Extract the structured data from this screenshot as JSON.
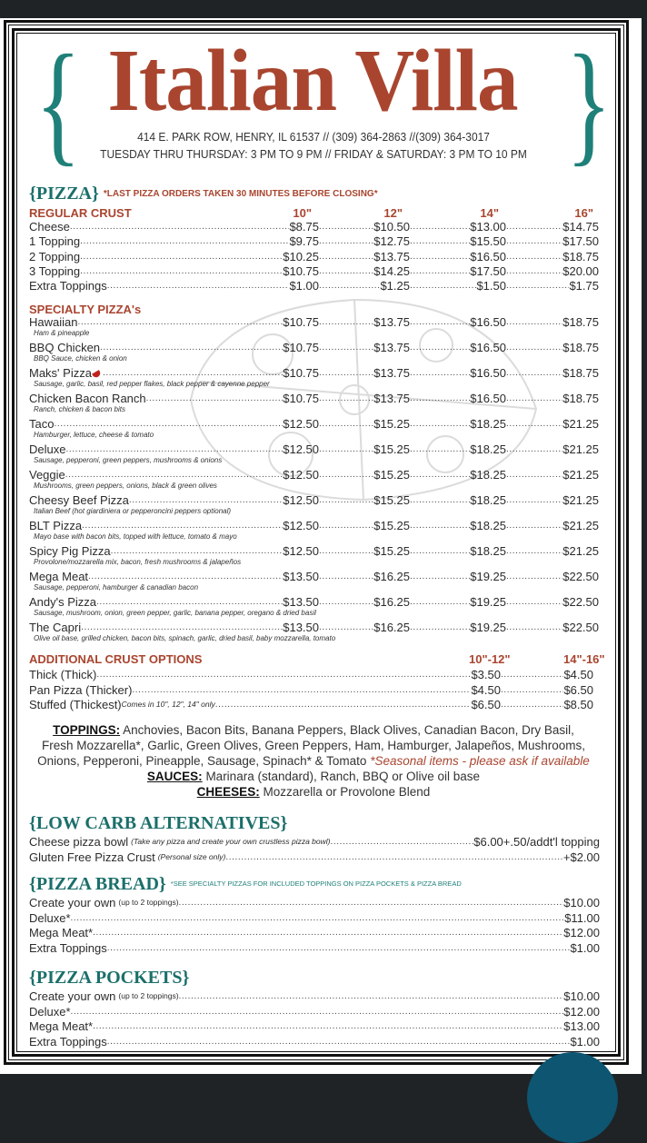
{
  "header": {
    "title": "Italian Villa",
    "brace_open": "{",
    "brace_close": "}",
    "address": "414 E. PARK ROW, HENRY, IL 61537 // (309) 364-2863 //(309) 364-3017",
    "hours": "TUESDAY THRU THURSDAY: 3 PM TO 9 PM // FRIDAY & SATURDAY: 3 PM TO 10 PM"
  },
  "colors": {
    "title_red": "#a9452f",
    "teal": "#1f8079",
    "button": "#0d5570"
  },
  "pizza": {
    "title": "{PIZZA}",
    "note": "*LAST PIZZA ORDERS TAKEN 30 MINUTES BEFORE CLOSING*",
    "regular_crust": "REGULAR CRUST",
    "sizes": [
      "10\"",
      "12\"",
      "14\"",
      "16\""
    ],
    "rows": [
      {
        "name": "Cheese",
        "prices": [
          "$8.75",
          "$10.50",
          "$13.00",
          "$14.75"
        ]
      },
      {
        "name": "1 Topping",
        "prices": [
          "$9.75",
          "$12.75",
          "$15.50",
          "$17.50"
        ]
      },
      {
        "name": "2 Topping",
        "prices": [
          "$10.25",
          "$13.75",
          "$16.50",
          "$18.75"
        ]
      },
      {
        "name": "3 Topping",
        "prices": [
          "$10.75",
          "$14.25",
          "$17.50",
          "$20.00"
        ]
      },
      {
        "name": "Extra Toppings",
        "prices": [
          "$1.00",
          "$1.25",
          "$1.50",
          "$1.75"
        ]
      }
    ]
  },
  "specialty": {
    "title": "SPECIALTY PIZZA's",
    "items": [
      {
        "name": "Hawaiian",
        "desc": "Ham & pineapple",
        "prices": [
          "$10.75",
          "$13.75",
          "$16.50",
          "$18.75"
        ]
      },
      {
        "name": "BBQ Chicken",
        "desc": "BBQ Sauce, chicken & onion",
        "prices": [
          "$10.75",
          "$13.75",
          "$16.50",
          "$18.75"
        ]
      },
      {
        "name": "Maks' Pizza",
        "icon": "chili-pepper-icon",
        "desc": "Sausage, garlic, basil, red pepper flakes, black pepper & cayenne pepper",
        "prices": [
          "$10.75",
          "$13.75",
          "$16.50",
          "$18.75"
        ]
      },
      {
        "name": "Chicken Bacon Ranch",
        "desc": "Ranch, chicken & bacon bits",
        "prices": [
          "$10.75",
          "$13.75",
          "$16.50",
          "$18.75"
        ]
      },
      {
        "name": "Taco",
        "desc": "Hamburger, lettuce, cheese & tomato",
        "prices": [
          "$12.50",
          "$15.25",
          "$18.25",
          "$21.25"
        ]
      },
      {
        "name": "Deluxe",
        "desc": "Sausage, pepperoni, green peppers, mushrooms & onions",
        "prices": [
          "$12.50",
          "$15.25",
          "$18.25",
          "$21.25"
        ]
      },
      {
        "name": "Veggie",
        "desc": "Mushrooms, green peppers, onions, black & green olives",
        "prices": [
          "$12.50",
          "$15.25",
          "$18.25",
          "$21.25"
        ]
      },
      {
        "name": "Cheesy Beef Pizza",
        "desc": "Italian Beef (hot giardiniera or pepperoncini peppers optional)",
        "prices": [
          "$12.50",
          "$15.25",
          "$18.25",
          "$21.25"
        ]
      },
      {
        "name": "BLT Pizza",
        "desc": "Mayo base with bacon bits, topped with lettuce, tomato & mayo",
        "prices": [
          "$12.50",
          "$15.25",
          "$18.25",
          "$21.25"
        ]
      },
      {
        "name": "Spicy Pig Pizza",
        "desc": "Provolone/mozzarella mix, bacon, fresh mushrooms & jalapeños",
        "prices": [
          "$12.50",
          "$15.25",
          "$18.25",
          "$21.25"
        ]
      },
      {
        "name": "Mega Meat",
        "desc": "Sausage, pepperoni, hamburger & canadian bacon",
        "prices": [
          "$13.50",
          "$16.25",
          "$19.25",
          "$22.50"
        ]
      },
      {
        "name": "Andy's Pizza",
        "desc": "Sausage, mushroom, onion, green pepper, garlic, banana pepper, oregano & dried basil",
        "prices": [
          "$13.50",
          "$16.25",
          "$19.25",
          "$22.50"
        ]
      },
      {
        "name": "The Capri",
        "desc": "Olive oil base, grilled chicken, bacon bits, spinach, garlic, dried basil, baby mozzarella, tomato",
        "prices": [
          "$13.50",
          "$16.25",
          "$19.25",
          "$22.50"
        ]
      }
    ]
  },
  "additional_crust": {
    "title": "ADDITIONAL CRUST OPTIONS",
    "sizes": [
      "10\"-12\"",
      "14\"-16\""
    ],
    "rows": [
      {
        "name": "Thick (Thick)",
        "note": "",
        "prices": [
          "$3.50",
          "$4.50"
        ]
      },
      {
        "name": "Pan Pizza (Thicker)",
        "note": "",
        "prices": [
          "$4.50",
          "$6.50"
        ]
      },
      {
        "name": "Stuffed (Thickest)",
        "note": "Comes in 10\", 12\", 14\" only",
        "prices": [
          "$6.50",
          "$8.50"
        ]
      }
    ]
  },
  "extras": {
    "toppings_label": "TOPPINGS:",
    "toppings_line1": "Anchovies, Bacon Bits, Banana Peppers, Black Olives, Canadian Bacon, Dry Basil,",
    "toppings_line2": "Fresh Mozzarella*, Garlic, Green Olives, Green Peppers, Ham, Hamburger, Jalapeños, Mushrooms,",
    "toppings_line3": "Onions, Pepperoni, Pineapple, Sausage, Spinach* & Tomato",
    "seasonal": "*Seasonal items - please ask if available",
    "sauces_label": "SAUCES:",
    "sauces": "Marinara (standard), Ranch, BBQ or Olive oil base",
    "cheeses_label": "CHEESES:",
    "cheeses": "Mozzarella or Provolone Blend"
  },
  "low_carb": {
    "title": "{LOW CARB ALTERNATIVES}",
    "items": [
      {
        "name": "Cheese pizza bowl",
        "note": "(Take any pizza and create your own crustless pizza bowl)",
        "price": "$6.00+.50/addt'l topping"
      },
      {
        "name": "Gluten Free Pizza Crust",
        "note": "(Personal size only)",
        "price": "+$2.00"
      }
    ]
  },
  "pizza_bread": {
    "title": "{PIZZA BREAD}",
    "note": "*SEE SPECIALTY PIZZAS FOR INCLUDED TOPPINGS ON PIZZA POCKETS & PIZZA BREAD",
    "items": [
      {
        "name": "Create your own",
        "note": "(up to 2 toppings)",
        "price": "$10.00"
      },
      {
        "name": "Deluxe*",
        "note": "",
        "price": "$11.00"
      },
      {
        "name": "Mega Meat*",
        "note": "",
        "price": "$12.00"
      },
      {
        "name": "Extra Toppings",
        "note": "",
        "price": "$1.00"
      }
    ]
  },
  "pizza_pockets": {
    "title": "{PIZZA POCKETS}",
    "items": [
      {
        "name": "Create your own",
        "note": "(up to 2 toppings)",
        "price": "$10.00"
      },
      {
        "name": "Deluxe*",
        "note": "",
        "price": "$12.00"
      },
      {
        "name": "Mega Meat*",
        "note": "",
        "price": "$13.00"
      },
      {
        "name": "Extra Toppings",
        "note": "",
        "price": "$1.00"
      }
    ]
  }
}
